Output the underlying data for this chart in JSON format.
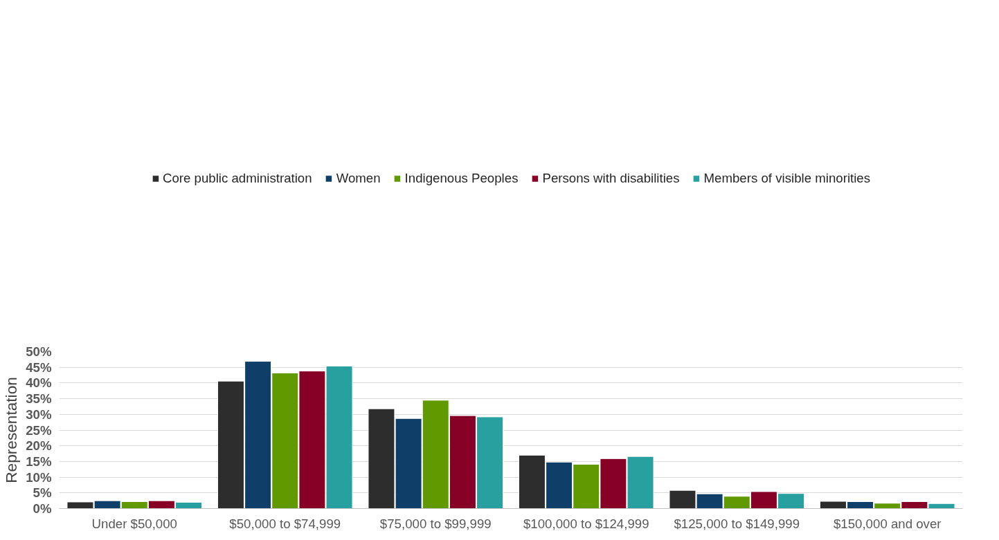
{
  "chart_data": {
    "type": "bar",
    "ylabel": "Representation",
    "categories": [
      "Under $50,000",
      "$50,000 to $74,999",
      "$75,000 to $99,999",
      "$100,000 to $124,999",
      "$125,000 to $149,999",
      "$150,000 and over"
    ],
    "series": [
      {
        "name": "Core public administration",
        "color": "#2d2d2d",
        "values": [
          2.1,
          40.6,
          31.8,
          17.0,
          5.8,
          2.3
        ]
      },
      {
        "name": "Women",
        "color": "#0f3f68",
        "values": [
          2.5,
          46.9,
          28.7,
          14.8,
          4.7,
          2.2
        ]
      },
      {
        "name": "Indigenous Peoples",
        "color": "#619a00",
        "values": [
          2.2,
          43.2,
          34.5,
          14.1,
          3.9,
          1.7
        ]
      },
      {
        "name": "Persons with disabilities",
        "color": "#870025",
        "values": [
          2.5,
          43.8,
          29.6,
          15.9,
          5.4,
          2.2
        ]
      },
      {
        "name": "Members of visible minorities",
        "color": "#27a09f",
        "values": [
          2.0,
          45.4,
          29.2,
          16.6,
          4.8,
          1.6
        ]
      }
    ],
    "ylim": [
      0,
      50
    ],
    "yticks": [
      {
        "value": 0,
        "label": "0%"
      },
      {
        "value": 5,
        "label": "5%"
      },
      {
        "value": 10,
        "label": "10%"
      },
      {
        "value": 15,
        "label": "15%"
      },
      {
        "value": 20,
        "label": "20%"
      },
      {
        "value": 25,
        "label": "25%"
      },
      {
        "value": 30,
        "label": "30%"
      },
      {
        "value": 35,
        "label": "35%"
      },
      {
        "value": 40,
        "label": "40%"
      },
      {
        "value": 45,
        "label": "45%"
      },
      {
        "value": 50,
        "label": "50%"
      }
    ],
    "grid": "y",
    "legend": "top"
  }
}
